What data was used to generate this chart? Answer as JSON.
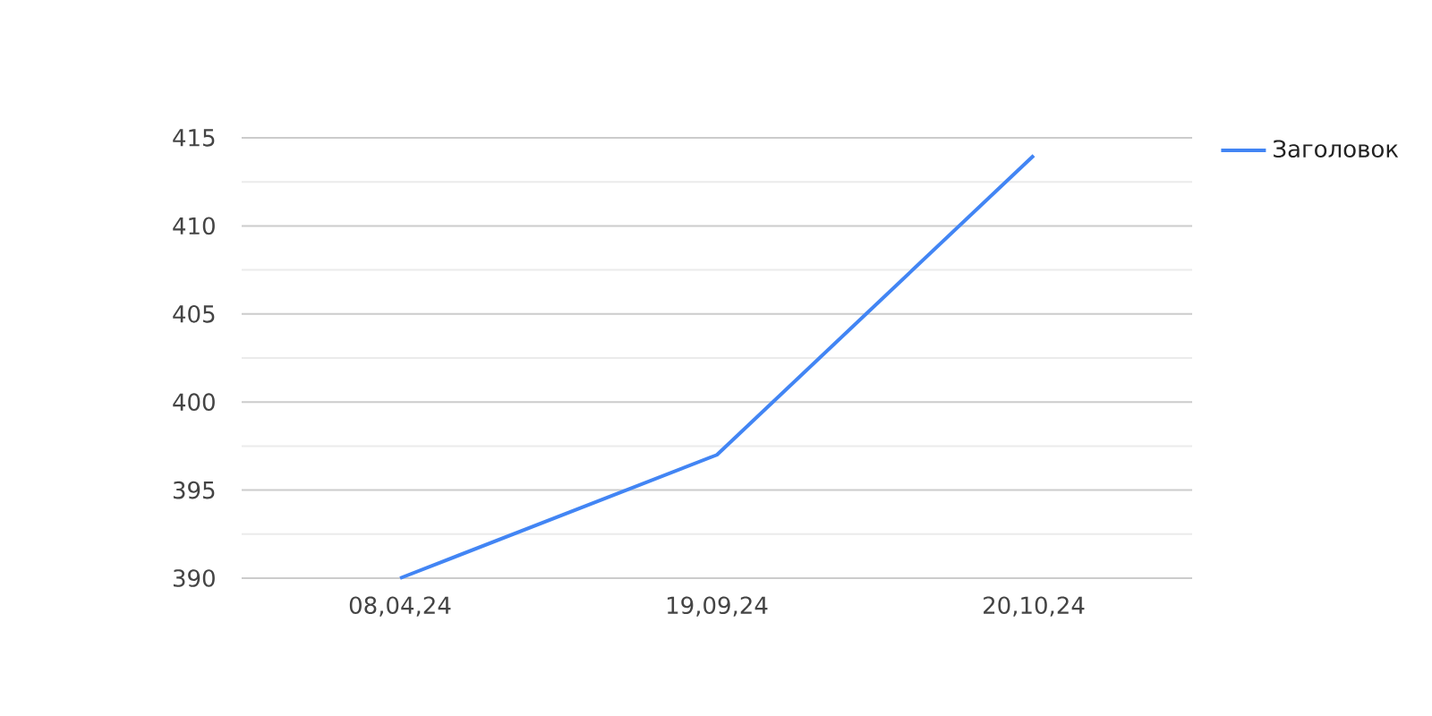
{
  "chart_data": {
    "type": "line",
    "categories": [
      "08,04,24",
      "19,09,24",
      "20,10,24"
    ],
    "series": [
      {
        "name": "Заголовок",
        "color": "#4285f4",
        "values": [
          390,
          397,
          414
        ]
      }
    ],
    "ylim": [
      390,
      415
    ],
    "yticks": [
      390,
      {
        "value": 392.5,
        "label": null
      },
      395,
      {
        "value": 397.5,
        "label": null
      },
      400,
      {
        "value": 402.5,
        "label": null
      },
      405,
      {
        "value": 407.5,
        "label": null
      },
      410,
      {
        "value": 412.5,
        "label": null
      },
      415
    ],
    "grid": "y",
    "legend": "top right",
    "line_style": "solid"
  }
}
